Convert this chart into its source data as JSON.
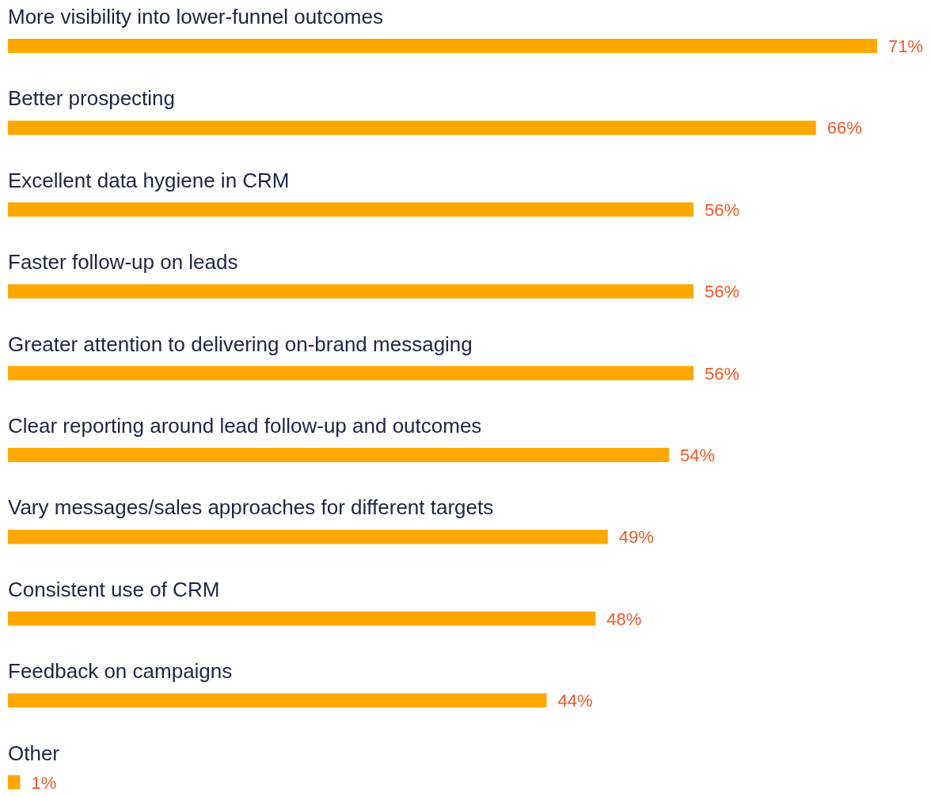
{
  "chart_data": {
    "type": "bar",
    "orientation": "horizontal",
    "categories": [
      "More visibility into lower-funnel outcomes",
      "Better prospecting",
      "Excellent data hygiene in CRM",
      "Faster follow-up on leads",
      "Greater attention to delivering on-brand messaging",
      "Clear reporting around lead follow-up and outcomes",
      "Vary messages/sales approaches for different targets",
      "Consistent use of CRM",
      "Feedback on campaigns",
      "Other"
    ],
    "values": [
      71,
      66,
      56,
      56,
      56,
      54,
      49,
      48,
      44,
      1
    ],
    "color": "#ffa800",
    "data_labels": true,
    "value_labels": [
      "71%",
      "66%",
      "56%",
      "56%",
      "56%",
      "54%",
      "49%",
      "48%",
      "44%",
      "1%"
    ]
  }
}
